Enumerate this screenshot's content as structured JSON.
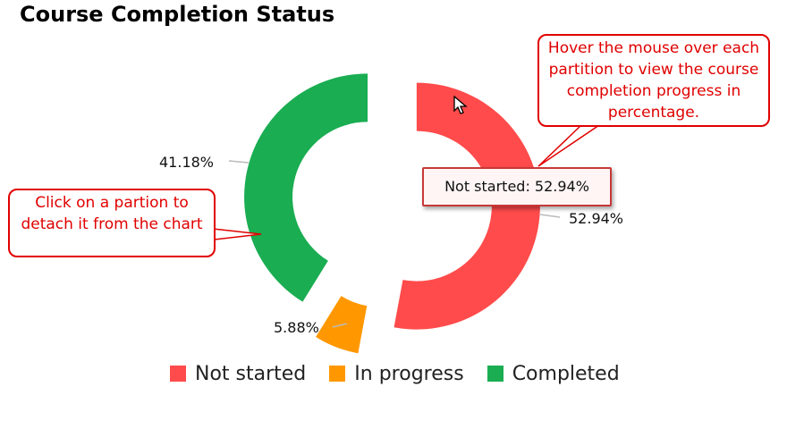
{
  "title": "Course Completion Status",
  "chart_data": {
    "type": "pie",
    "variant": "donut",
    "exploded": true,
    "categories": [
      "Not started",
      "In progress",
      "Completed"
    ],
    "values": [
      52.94,
      5.88,
      41.18
    ],
    "data_labels": [
      "52.94%",
      "5.88%",
      "41.18%"
    ],
    "colors": [
      "#ff4b4b",
      "#ff9800",
      "#1aad52"
    ],
    "legend_position": "bottom"
  },
  "tooltip": {
    "text": "Not started: 52.94%"
  },
  "callouts": {
    "detach": "Click on a partion to detach it from the chart",
    "hover": "Hover the mouse over each partition to view the course completion progress in percentage."
  }
}
